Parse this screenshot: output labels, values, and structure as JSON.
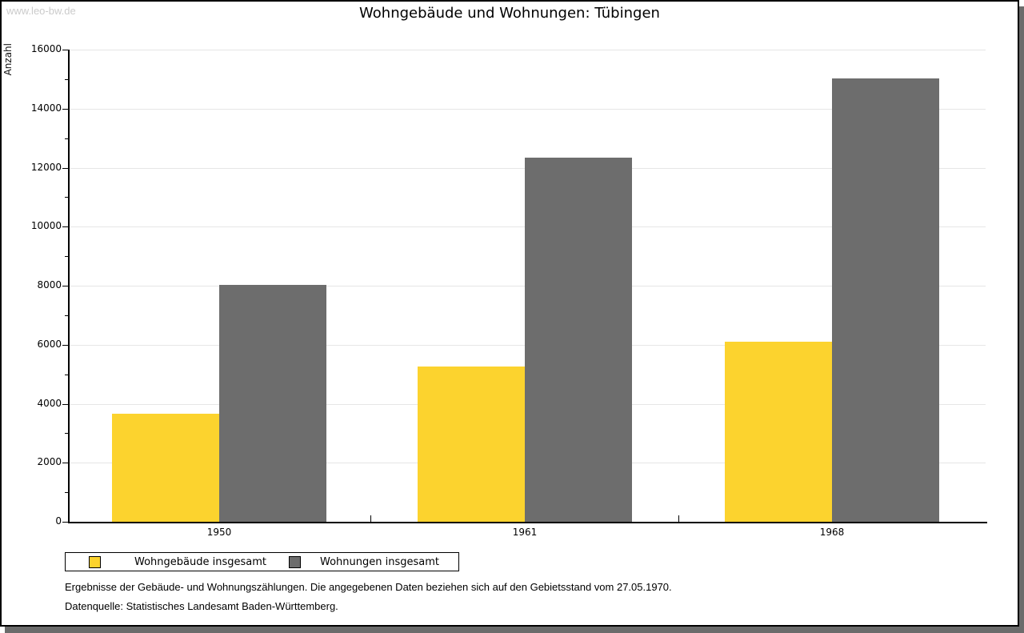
{
  "watermark": "www.leo-bw.de",
  "title": "Wohngebäude und Wohnungen: Tübingen",
  "chart_data": {
    "type": "bar",
    "title": "Wohngebäude und Wohnungen: Tübingen",
    "categories": [
      "1950",
      "1961",
      "1968"
    ],
    "series": [
      {
        "name": "Wohngebäude insgesamt",
        "color": "#FCD32E",
        "values": [
          3650,
          5250,
          6100
        ]
      },
      {
        "name": "Wohnungen insgesamt",
        "color": "#6D6D6D",
        "values": [
          8040,
          12330,
          15030
        ]
      }
    ],
    "xlabel": "",
    "ylabel": "Anzahl",
    "ylim": [
      0,
      16000
    ],
    "ytick_major_step": 2000,
    "ytick_minor_step": 1000,
    "grid": true,
    "gridline_color": "#E6E6E6",
    "legend_position": "bottom-left"
  },
  "footer": {
    "lines": [
      "Ergebnisse der Gebäude- und Wohnungszählungen. Die angegebenen Daten beziehen sich auf den Gebietsstand vom 27.05.1970.",
      "Datenquelle: Statistisches Landesamt Baden-Württemberg."
    ]
  }
}
